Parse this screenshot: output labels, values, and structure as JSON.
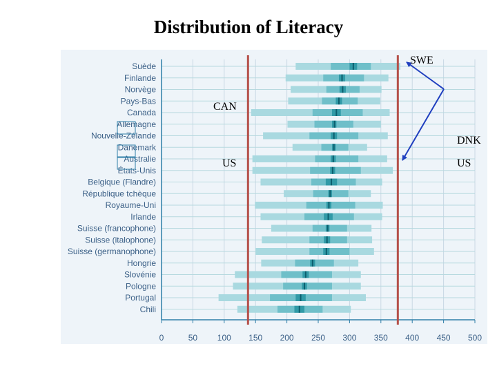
{
  "title": "Distribution of Literacy",
  "chart_data": {
    "type": "bar",
    "title": "Distribution of Literacy",
    "xlim": [
      0,
      500
    ],
    "xticks": [
      0,
      50,
      100,
      150,
      200,
      250,
      300,
      350,
      400,
      450,
      500
    ],
    "grid": true,
    "colors": {
      "panel": "#eef4f9",
      "outer": "#a9d9e0",
      "mid": "#6fbfc9",
      "inner": "#319aa7",
      "mean": "#0b5e6e",
      "ref_line": "#b5504a",
      "label": "#3a5f86",
      "arrow": "#1f3fbf",
      "frame": "#2e7ea8"
    },
    "reference_lines": [
      {
        "label": "US",
        "value": 138
      },
      {
        "label": "US",
        "value": 377
      }
    ],
    "countries": [
      {
        "name": "Suède",
        "p5": 214,
        "p25": 270,
        "ci_low": 300,
        "mean": 306,
        "ci_high": 312,
        "p75": 334,
        "p95": 381
      },
      {
        "name": "Finlande",
        "p5": 198,
        "p25": 258,
        "ci_low": 283,
        "mean": 288,
        "ci_high": 293,
        "p75": 323,
        "p95": 362
      },
      {
        "name": "Norvège",
        "p5": 206,
        "p25": 263,
        "ci_low": 284,
        "mean": 289,
        "ci_high": 294,
        "p75": 316,
        "p95": 351
      },
      {
        "name": "Pays-Bas",
        "p5": 202,
        "p25": 256,
        "ci_low": 278,
        "mean": 283,
        "ci_high": 288,
        "p75": 313,
        "p95": 349
      },
      {
        "name": "Canada",
        "p5": 143,
        "p25": 241,
        "ci_low": 272,
        "mean": 279,
        "ci_high": 286,
        "p75": 321,
        "p95": 364
      },
      {
        "name": "Allemagne",
        "p5": 201,
        "p25": 244,
        "ci_low": 272,
        "mean": 276,
        "ci_high": 279,
        "p75": 306,
        "p95": 350
      },
      {
        "name": "Nouvelle-Zélande",
        "p5": 162,
        "p25": 236,
        "ci_low": 270,
        "mean": 275,
        "ci_high": 280,
        "p75": 314,
        "p95": 361
      },
      {
        "name": "Danemark",
        "p5": 209,
        "p25": 255,
        "ci_low": 272,
        "mean": 275,
        "ci_high": 278,
        "p75": 298,
        "p95": 328
      },
      {
        "name": "Australie",
        "p5": 145,
        "p25": 245,
        "ci_low": 270,
        "mean": 274,
        "ci_high": 278,
        "p75": 314,
        "p95": 360
      },
      {
        "name": "États-Unis",
        "p5": 145,
        "p25": 237,
        "ci_low": 269,
        "mean": 273,
        "ci_high": 277,
        "p75": 318,
        "p95": 369
      },
      {
        "name": "Belgique (Flandre)",
        "p5": 158,
        "p25": 239,
        "ci_low": 262,
        "mean": 271,
        "ci_high": 280,
        "p75": 310,
        "p95": 352
      },
      {
        "name": "République tchèque",
        "p5": 195,
        "p25": 242,
        "ci_low": 266,
        "mean": 269,
        "ci_high": 272,
        "p75": 298,
        "p95": 334
      },
      {
        "name": "Royaume-Uni",
        "p5": 149,
        "p25": 231,
        "ci_low": 263,
        "mean": 267,
        "ci_high": 271,
        "p75": 309,
        "p95": 353
      },
      {
        "name": "Irlande",
        "p5": 158,
        "p25": 228,
        "ci_low": 259,
        "mean": 266,
        "ci_high": 273,
        "p75": 307,
        "p95": 352
      },
      {
        "name": "Suisse (francophone)",
        "p5": 175,
        "p25": 241,
        "ci_low": 262,
        "mean": 265,
        "ci_high": 268,
        "p75": 296,
        "p95": 335
      },
      {
        "name": "Suisse (italophone)",
        "p5": 160,
        "p25": 236,
        "ci_low": 259,
        "mean": 264,
        "ci_high": 269,
        "p75": 296,
        "p95": 336
      },
      {
        "name": "Suisse (germanophone)",
        "p5": 150,
        "p25": 236,
        "ci_low": 258,
        "mean": 263,
        "ci_high": 268,
        "p75": 300,
        "p95": 339
      },
      {
        "name": "Hongrie",
        "p5": 159,
        "p25": 213,
        "ci_low": 237,
        "mean": 241,
        "ci_high": 245,
        "p75": 275,
        "p95": 314
      },
      {
        "name": "Slovénie",
        "p5": 117,
        "p25": 191,
        "ci_low": 225,
        "mean": 230,
        "ci_high": 235,
        "p75": 272,
        "p95": 318
      },
      {
        "name": "Pologne",
        "p5": 114,
        "p25": 194,
        "ci_low": 224,
        "mean": 228,
        "ci_high": 232,
        "p75": 272,
        "p95": 318
      },
      {
        "name": "Portugal",
        "p5": 91,
        "p25": 173,
        "ci_low": 214,
        "mean": 222,
        "ci_high": 230,
        "p75": 272,
        "p95": 326
      },
      {
        "name": "Chili",
        "p5": 121,
        "p25": 185,
        "ci_low": 212,
        "mean": 220,
        "ci_high": 228,
        "p75": 257,
        "p95": 302
      }
    ],
    "annotations": [
      "SWE",
      "CAN",
      "DNK",
      "US",
      "US"
    ]
  }
}
